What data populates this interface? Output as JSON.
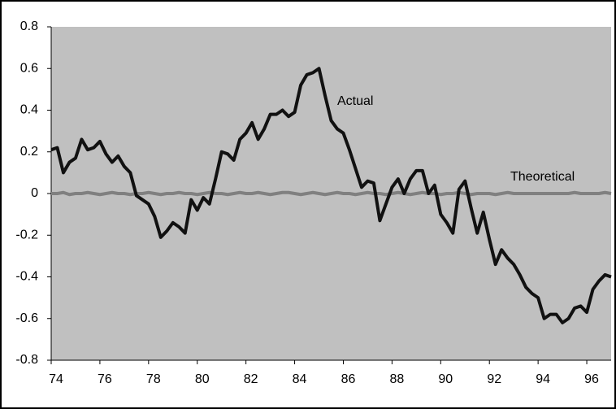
{
  "chart_data": {
    "type": "line",
    "x": [
      74,
      74.25,
      74.5,
      74.75,
      75,
      75.25,
      75.5,
      75.75,
      76,
      76.25,
      76.5,
      76.75,
      77,
      77.25,
      77.5,
      77.75,
      78,
      78.25,
      78.5,
      78.75,
      79,
      79.25,
      79.5,
      79.75,
      80,
      80.25,
      80.5,
      80.75,
      81,
      81.25,
      81.5,
      81.75,
      82,
      82.25,
      82.5,
      82.75,
      83,
      83.25,
      83.5,
      83.75,
      84,
      84.25,
      84.5,
      84.75,
      85,
      85.25,
      85.5,
      85.75,
      86,
      86.25,
      86.5,
      86.75,
      87,
      87.25,
      87.5,
      87.75,
      88,
      88.25,
      88.5,
      88.75,
      89,
      89.25,
      89.5,
      89.75,
      90,
      90.25,
      90.5,
      90.75,
      91,
      91.25,
      91.5,
      91.75,
      92,
      92.25,
      92.5,
      92.75,
      93,
      93.25,
      93.5,
      93.75,
      94,
      94.25,
      94.5,
      94.75,
      95,
      95.25,
      95.5,
      95.75,
      96,
      96.25,
      96.5,
      96.75,
      97
    ],
    "series": [
      {
        "name": "Actual",
        "color": "#111111",
        "values": [
          0.21,
          0.22,
          0.1,
          0.15,
          0.17,
          0.26,
          0.21,
          0.22,
          0.25,
          0.19,
          0.15,
          0.18,
          0.13,
          0.1,
          -0.01,
          -0.03,
          -0.05,
          -0.11,
          -0.21,
          -0.18,
          -0.14,
          -0.16,
          -0.19,
          -0.03,
          -0.08,
          -0.02,
          -0.05,
          0.07,
          0.2,
          0.19,
          0.16,
          0.26,
          0.29,
          0.34,
          0.26,
          0.31,
          0.38,
          0.38,
          0.4,
          0.37,
          0.39,
          0.52,
          0.57,
          0.58,
          0.6,
          0.47,
          0.35,
          0.31,
          0.29,
          0.21,
          0.12,
          0.03,
          0.06,
          0.05,
          -0.13,
          -0.05,
          0.03,
          0.07,
          0.0,
          0.07,
          0.11,
          0.11,
          0.0,
          0.04,
          -0.1,
          -0.14,
          -0.19,
          0.02,
          0.06,
          -0.07,
          -0.19,
          -0.09,
          -0.22,
          -0.34,
          -0.27,
          -0.31,
          -0.34,
          -0.39,
          -0.45,
          -0.48,
          -0.5,
          -0.6,
          -0.58,
          -0.58,
          -0.62,
          -0.6,
          -0.55,
          -0.54,
          -0.57,
          -0.46,
          -0.42,
          -0.39,
          -0.4
        ]
      },
      {
        "name": "Theoretical",
        "color": "#808080",
        "values": [
          0,
          0,
          0.005,
          -0.005,
          0,
          0,
          0.005,
          0,
          -0.005,
          0,
          0.005,
          0,
          0,
          -0.005,
          0,
          0,
          0.005,
          0,
          -0.005,
          0,
          0,
          0.005,
          0,
          0,
          -0.005,
          0,
          0.005,
          0,
          0,
          -0.005,
          0,
          0.005,
          0,
          0,
          0.005,
          0,
          -0.005,
          0,
          0.005,
          0.005,
          0,
          -0.005,
          0,
          0.005,
          0,
          -0.005,
          0,
          0.005,
          0,
          0,
          -0.005,
          0,
          0.005,
          0,
          0,
          -0.005,
          0,
          0.005,
          0,
          -0.005,
          0,
          0.005,
          0,
          0,
          -0.005,
          0,
          0,
          0.005,
          0,
          -0.005,
          0,
          0,
          0,
          -0.005,
          0,
          0.005,
          0,
          0,
          0,
          0,
          0,
          0,
          0,
          0,
          0,
          0,
          0.005,
          0,
          0,
          0,
          0,
          0.005,
          0
        ]
      }
    ],
    "xlim": [
      74,
      97
    ],
    "xticks": [
      74,
      76,
      78,
      80,
      82,
      84,
      86,
      88,
      90,
      92,
      94,
      96
    ],
    "ylim": [
      -0.8,
      0.8
    ],
    "yticks": [
      0.8,
      0.6,
      0.4,
      0.2,
      0,
      -0.2,
      -0.4,
      -0.6,
      -0.8
    ]
  }
}
